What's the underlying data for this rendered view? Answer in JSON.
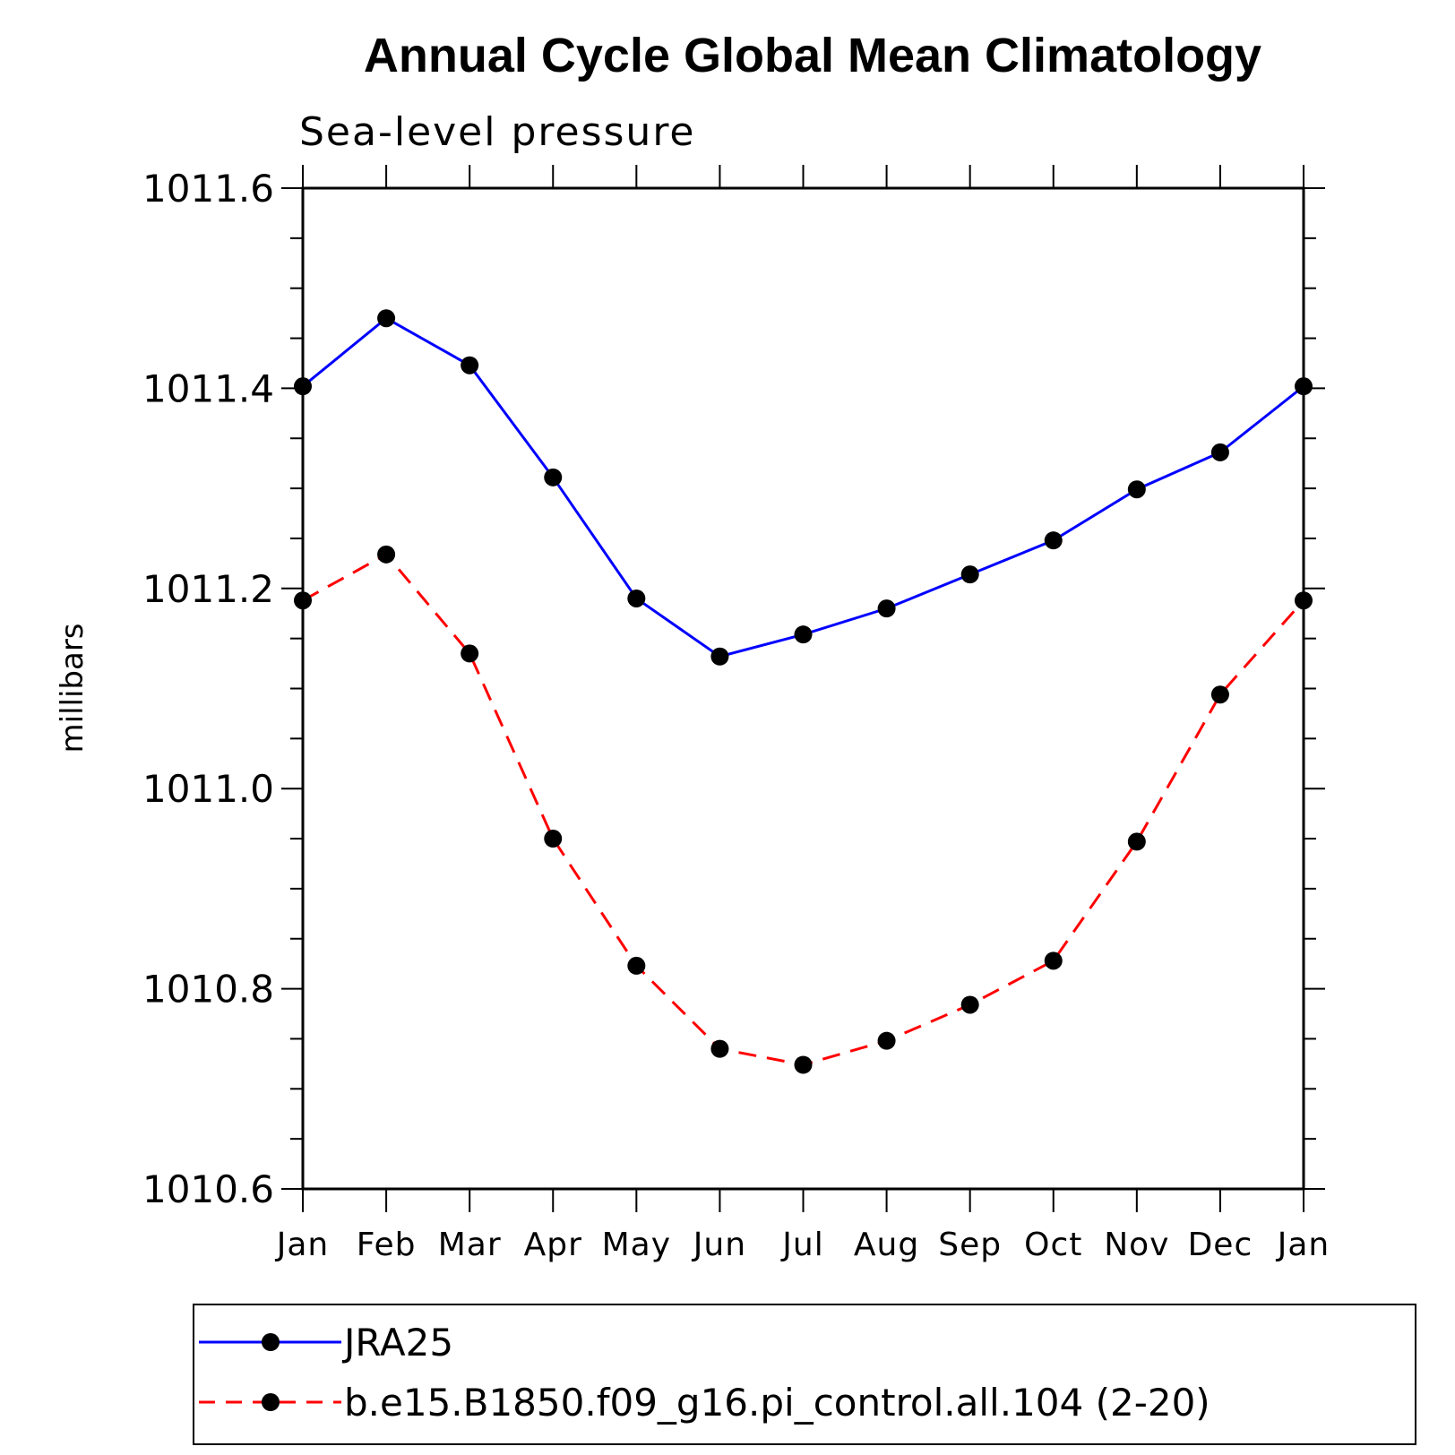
{
  "chart_data": {
    "type": "line",
    "title": "Annual Cycle Global Mean Climatology",
    "subtitle": "Sea-level pressure",
    "xlabel": "",
    "ylabel": "millibars",
    "categories": [
      "Jan",
      "Feb",
      "Mar",
      "Apr",
      "May",
      "Jun",
      "Jul",
      "Aug",
      "Sep",
      "Oct",
      "Nov",
      "Dec",
      "Jan"
    ],
    "ylim": [
      1010.6,
      1011.6
    ],
    "yticks": [
      "1010.6",
      "1010.8",
      "1011.0",
      "1011.2",
      "1011.4",
      "1011.6"
    ],
    "grid": false,
    "legend_position": "bottom",
    "series": [
      {
        "name": "JRA25",
        "color": "#0000ff",
        "line_style": "solid",
        "marker": "filled-circle",
        "values": [
          1011.402,
          1011.47,
          1011.423,
          1011.311,
          1011.19,
          1011.132,
          1011.154,
          1011.18,
          1011.214,
          1011.248,
          1011.299,
          1011.336,
          1011.402
        ]
      },
      {
        "name": "b.e15.B1850.f09_g16.pi_control.all.104 (2-20)",
        "color": "#ff0000",
        "line_style": "dashed",
        "marker": "filled-circle",
        "values": [
          1011.188,
          1011.234,
          1011.135,
          1010.95,
          1010.823,
          1010.74,
          1010.724,
          1010.748,
          1010.784,
          1010.828,
          1010.947,
          1011.094,
          1011.188
        ]
      }
    ]
  }
}
